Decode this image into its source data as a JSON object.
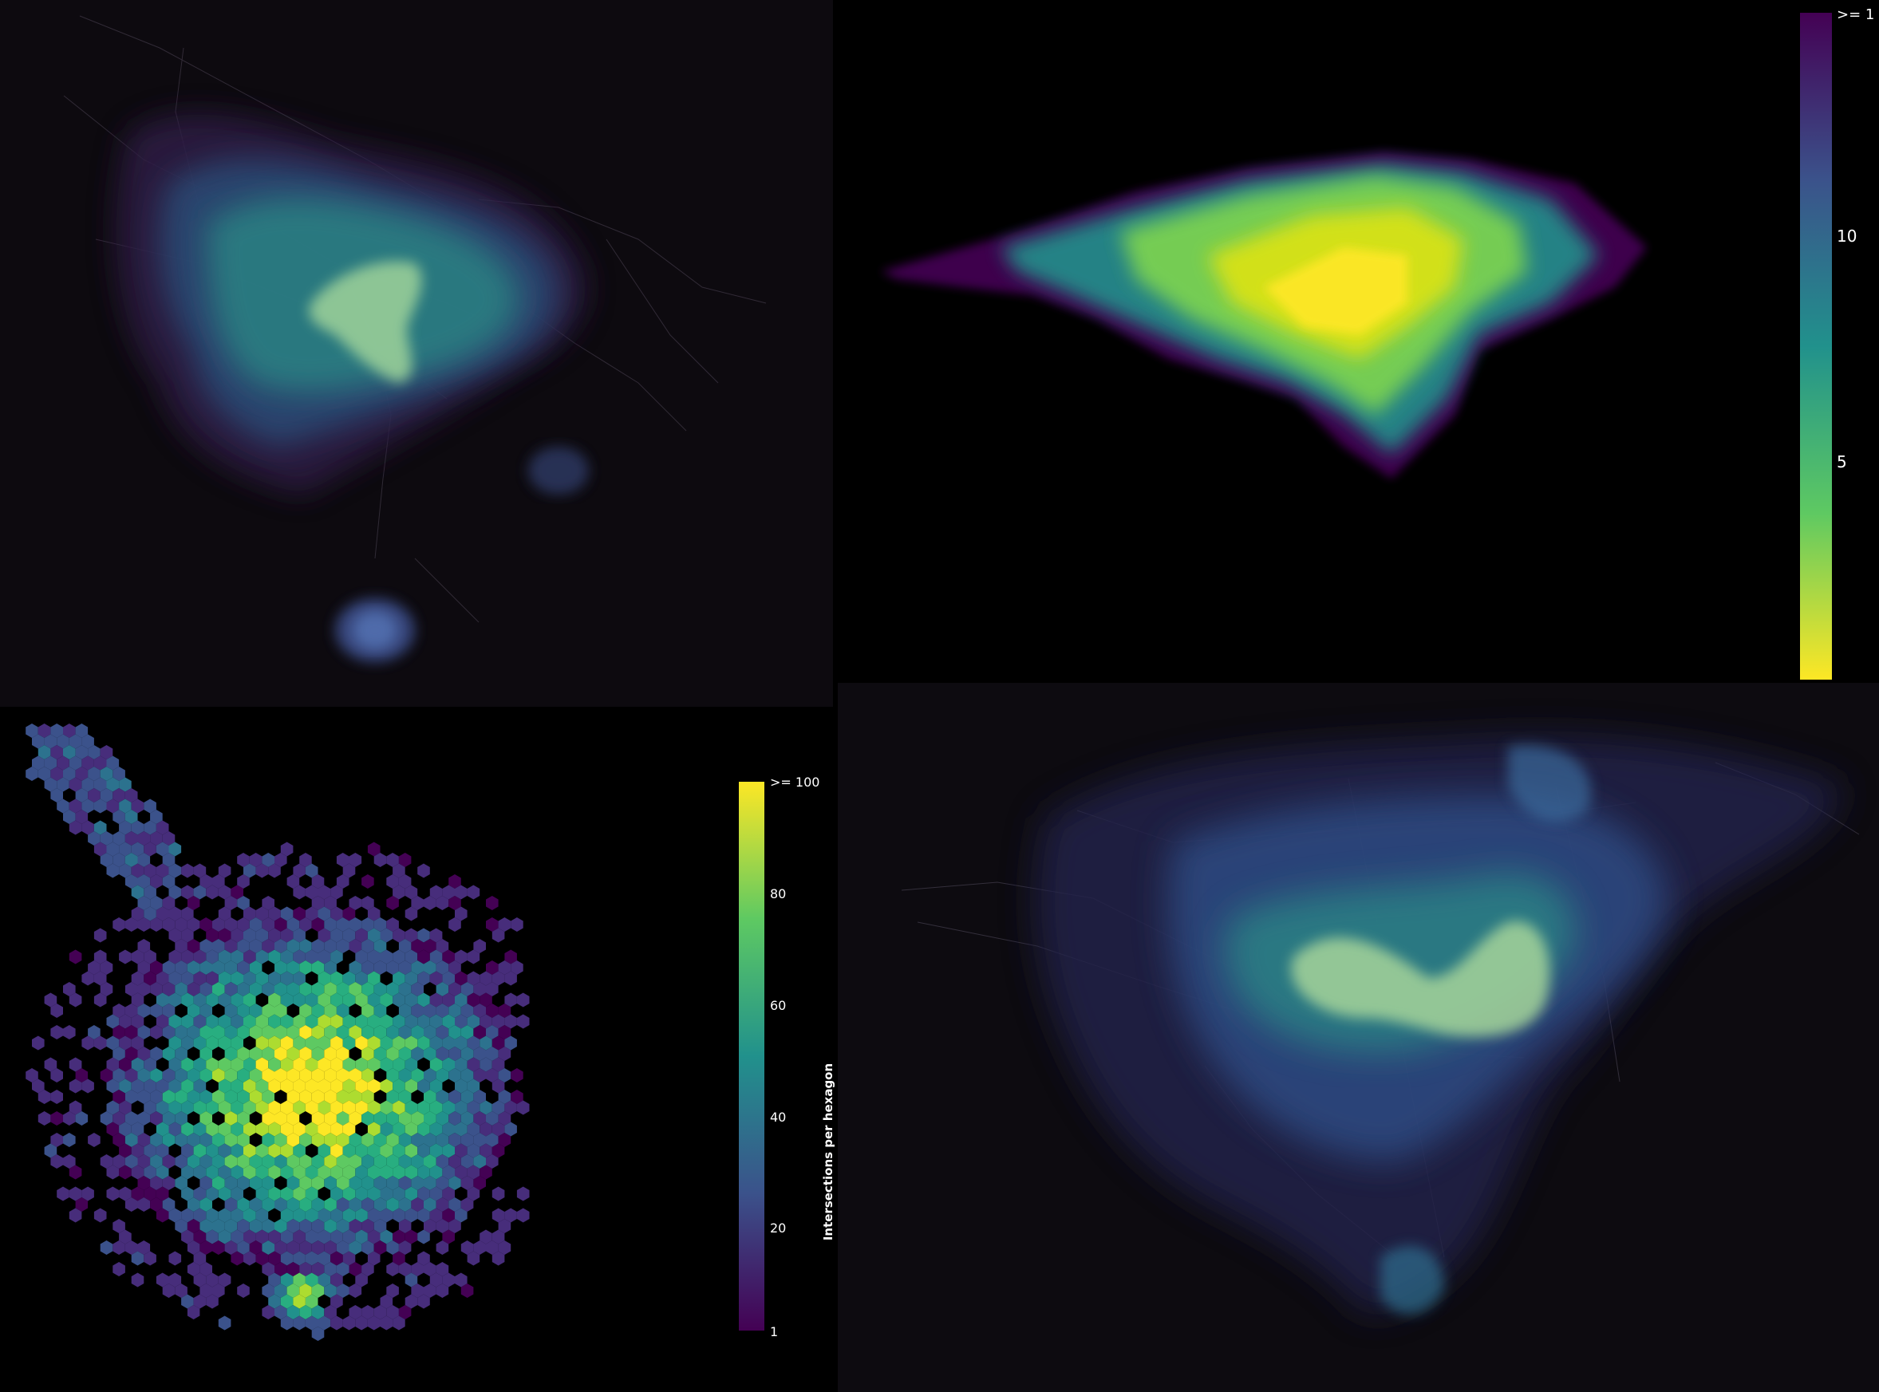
{
  "panels": {
    "top_left": {
      "content": "street network density heatmap"
    },
    "top_right": {
      "content": "street network density raster",
      "colorbar": {
        "ticks": [
          "10",
          "5"
        ],
        "max_label": ">= 1"
      }
    },
    "bottom_left": {
      "content": "hexbin map of intersections",
      "colorbar": {
        "label": "Intersections per hexagon",
        "ticks": [
          "1",
          "20",
          "40",
          "60",
          "80"
        ],
        "max_label": ">= 100"
      }
    },
    "bottom_right": {
      "content": "street network density heatmap"
    }
  },
  "colors": {
    "background_dark": "#0d0a0f",
    "viridis_dark": "#440154",
    "viridis_mid": "#21918c",
    "viridis_bright": "#fde725"
  }
}
